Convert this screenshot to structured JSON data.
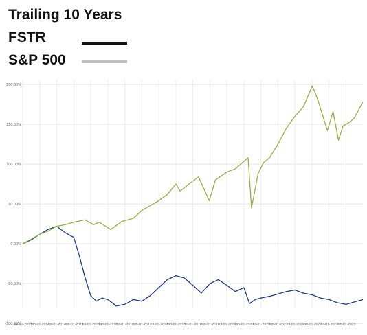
{
  "chart_data": {
    "type": "line",
    "title": "Trailing 10 Years",
    "legend_placement": "top-left",
    "grid": true,
    "ylim": [
      -0.8,
      2.06
    ],
    "y_ticks": [
      2.0,
      1.5,
      1.0,
      0.5,
      0.0,
      -0.5,
      -1.0
    ],
    "y_tick_labels": [
      "200.00%",
      "150.00%",
      "100.00%",
      "50.00%",
      "0.00%",
      "-50.00%",
      "-100.00%"
    ],
    "x_range": [
      "2013-07-01",
      "2023-07-01"
    ],
    "x_ticks": [
      "2013-07-01",
      "2014-01-01",
      "2014-07-01",
      "2015-01-01",
      "2015-07-01",
      "2016-01-01",
      "2016-07-01",
      "2017-01-01",
      "2017-07-01",
      "2018-01-01",
      "2018-07-01",
      "2019-01-01",
      "2019-07-01",
      "2020-01-01",
      "2020-07-01",
      "2021-01-01",
      "2021-07-01",
      "2022-01-01",
      "2022-07-01",
      "2023-01-01"
    ],
    "x_tick_labels": [
      "Jul-01-2013",
      "Jan-01-2014",
      "Jul-01-2014",
      "Jan-01-2015",
      "Jul-01-2015",
      "Jan-01-2016",
      "Jul-01-2016",
      "Jan-01-2017",
      "Jul-01-2017",
      "Jan-01-2018",
      "Jul-01-2018",
      "Jan-01-2019",
      "Jul-01-2019",
      "Jan-01-2020",
      "Jul-01-2020",
      "Jan-01-2021",
      "Jul-01-2021",
      "Jan-01-2022",
      "Jul-01-2022",
      "Jan-01-2023"
    ],
    "series": [
      {
        "name": "FSTR",
        "legend_color": "#111111",
        "line_color": "#1f3a7a",
        "x": [
          "2013-07-01",
          "2013-10-01",
          "2014-01-01",
          "2014-04-01",
          "2014-07-01",
          "2014-10-01",
          "2015-01-01",
          "2015-03-01",
          "2015-05-01",
          "2015-07-01",
          "2015-09-01",
          "2015-11-01",
          "2016-01-01",
          "2016-04-01",
          "2016-07-01",
          "2016-10-01",
          "2017-01-01",
          "2017-04-01",
          "2017-07-01",
          "2017-10-01",
          "2018-01-01",
          "2018-04-01",
          "2018-07-01",
          "2018-10-01",
          "2019-01-01",
          "2019-04-01",
          "2019-07-01",
          "2019-10-01",
          "2020-01-01",
          "2020-03-01",
          "2020-05-01",
          "2020-07-01",
          "2020-10-01",
          "2021-01-01",
          "2021-04-01",
          "2021-07-01",
          "2021-10-01",
          "2022-01-01",
          "2022-04-01",
          "2022-07-01",
          "2022-10-01",
          "2023-01-01",
          "2023-04-01",
          "2023-07-01"
        ],
        "values": [
          0.0,
          0.05,
          0.12,
          0.18,
          0.22,
          0.14,
          0.08,
          -0.15,
          -0.42,
          -0.65,
          -0.72,
          -0.68,
          -0.7,
          -0.78,
          -0.76,
          -0.7,
          -0.72,
          -0.65,
          -0.55,
          -0.45,
          -0.4,
          -0.43,
          -0.52,
          -0.62,
          -0.5,
          -0.45,
          -0.52,
          -0.6,
          -0.55,
          -0.75,
          -0.7,
          -0.68,
          -0.66,
          -0.63,
          -0.6,
          -0.58,
          -0.62,
          -0.64,
          -0.68,
          -0.7,
          -0.74,
          -0.76,
          -0.73,
          -0.7
        ]
      },
      {
        "name": "S&P 500",
        "legend_color": "#c0c0c0",
        "line_color": "#8fb04a",
        "x": [
          "2013-07-01",
          "2013-10-01",
          "2014-01-01",
          "2014-04-01",
          "2014-07-01",
          "2014-10-01",
          "2015-01-01",
          "2015-05-01",
          "2015-08-01",
          "2015-10-01",
          "2016-02-01",
          "2016-06-01",
          "2016-10-01",
          "2017-01-01",
          "2017-04-01",
          "2017-07-01",
          "2017-10-01",
          "2018-01-01",
          "2018-02-15",
          "2018-06-01",
          "2018-09-01",
          "2018-12-24",
          "2019-03-01",
          "2019-07-01",
          "2019-10-01",
          "2020-02-15",
          "2020-03-23",
          "2020-06-01",
          "2020-08-01",
          "2020-10-01",
          "2021-01-01",
          "2021-04-01",
          "2021-07-01",
          "2021-10-01",
          "2022-01-03",
          "2022-03-01",
          "2022-06-15",
          "2022-08-15",
          "2022-10-12",
          "2022-12-01",
          "2023-02-01",
          "2023-04-01",
          "2023-07-01"
        ],
        "values": [
          0.0,
          0.06,
          0.12,
          0.16,
          0.22,
          0.24,
          0.27,
          0.3,
          0.24,
          0.27,
          0.18,
          0.28,
          0.32,
          0.42,
          0.48,
          0.54,
          0.62,
          0.75,
          0.66,
          0.76,
          0.84,
          0.54,
          0.8,
          0.9,
          0.94,
          1.08,
          0.45,
          0.88,
          1.02,
          1.08,
          1.25,
          1.45,
          1.6,
          1.72,
          1.98,
          1.82,
          1.42,
          1.66,
          1.3,
          1.48,
          1.52,
          1.58,
          1.78
        ]
      }
    ]
  }
}
